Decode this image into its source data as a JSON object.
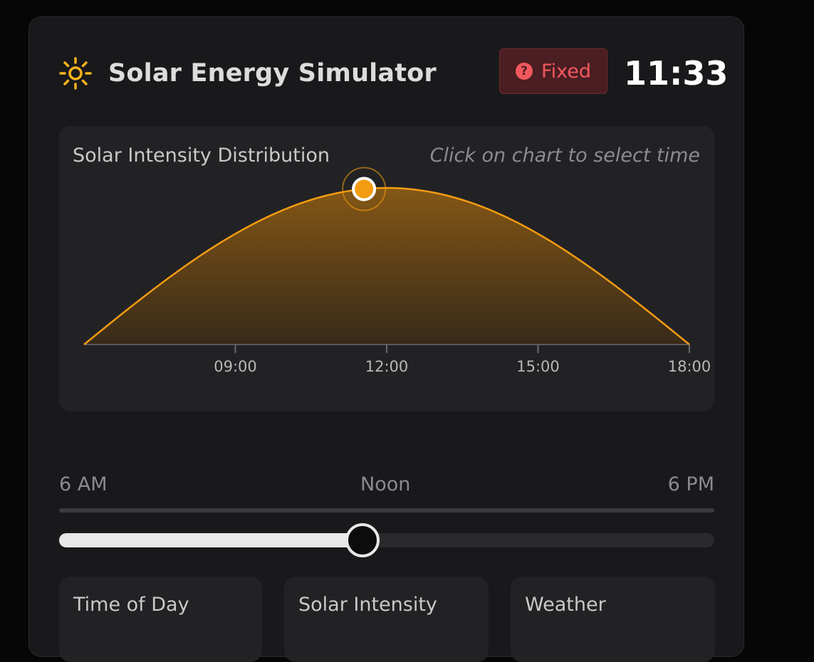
{
  "header": {
    "title": "Solar Energy Simulator",
    "mode_label": "Fixed",
    "time": "11:33"
  },
  "chart": {
    "title": "Solar Intensity Distribution",
    "hint": "Click on chart to select time"
  },
  "chart_data": {
    "type": "area",
    "title": "Solar Intensity Distribution",
    "x_range_hours": [
      6,
      18
    ],
    "xticks": [
      "09:00",
      "12:00",
      "15:00",
      "18:00"
    ],
    "xtick_hours": [
      9,
      12,
      15,
      18
    ],
    "ylim": [
      0,
      1
    ],
    "curve": "sine",
    "peak_hour": 12,
    "selected_hour": 11.55,
    "line_color": "#f39c12",
    "marker_color": "#f39c12"
  },
  "slider": {
    "start_label": "6 AM",
    "mid_label": "Noon",
    "end_label": "6 PM",
    "value_fraction": 0.4625
  },
  "stats": [
    {
      "label": "Time of Day"
    },
    {
      "label": "Solar Intensity"
    },
    {
      "label": "Weather"
    }
  ],
  "colors": {
    "accent": "#f39c12",
    "badge_text": "#f0585e",
    "badge_bg": "#4a1e22"
  }
}
